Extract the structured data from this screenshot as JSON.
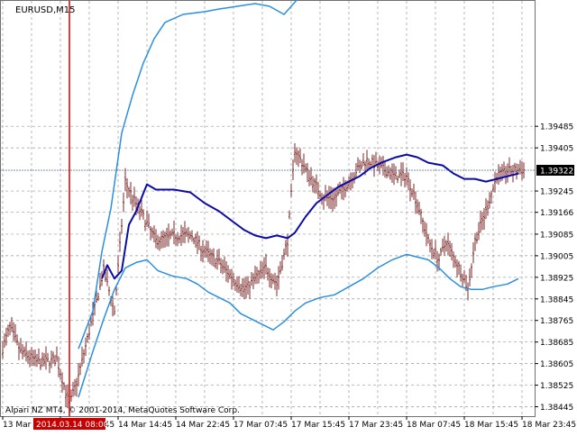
{
  "chart_data": {
    "type": "line",
    "title": "EURUSD,M15",
    "copyright": "Alpari NZ MT4, © 2001-2014, MetaQuotes Software Corp.",
    "current_price": 1.39322,
    "vline_label": "2014.03.14 08:00",
    "ylim": [
      1.3841,
      1.3995
    ],
    "y_ticks": [
      1.38445,
      1.38525,
      1.38605,
      1.38685,
      1.38765,
      1.38845,
      1.38925,
      1.39005,
      1.39085,
      1.39166,
      1.39245,
      1.39322,
      1.39405,
      1.39485
    ],
    "y_tick_labels": [
      "1.38445",
      "1.38525",
      "1.38605",
      "1.38685",
      "1.38765",
      "1.38845",
      "1.38925",
      "1.39005",
      "1.39085",
      "1.39166",
      "1.39245",
      "1.39405",
      "1.39485"
    ],
    "x_tick_labels": [
      "13 Mar 2014",
      "14 Mar 06:45",
      "14 Mar 14:45",
      "14 Mar 22:45",
      "17 Mar 07:45",
      "17 Mar 15:45",
      "17 Mar 23:45",
      "18 Mar 07:45",
      "18 Mar 15:45",
      "18 Mar 23:45"
    ],
    "x_ticks_at": [
      0,
      32,
      64,
      96,
      128,
      160,
      192,
      224,
      256,
      288
    ],
    "vline_at": 37,
    "bars_count": 290,
    "key_closes": [
      [
        0,
        1.3866
      ],
      [
        4,
        1.3874
      ],
      [
        10,
        1.3865
      ],
      [
        20,
        1.3861
      ],
      [
        30,
        1.3862
      ],
      [
        37,
        1.3845
      ],
      [
        42,
        1.3856
      ],
      [
        50,
        1.3878
      ],
      [
        56,
        1.3895
      ],
      [
        62,
        1.388
      ],
      [
        68,
        1.3928
      ],
      [
        72,
        1.3922
      ],
      [
        78,
        1.3915
      ],
      [
        85,
        1.3906
      ],
      [
        95,
        1.3908
      ],
      [
        105,
        1.3908
      ],
      [
        112,
        1.3902
      ],
      [
        120,
        1.3898
      ],
      [
        128,
        1.3892
      ],
      [
        134,
        1.3888
      ],
      [
        140,
        1.3892
      ],
      [
        146,
        1.3896
      ],
      [
        152,
        1.389
      ],
      [
        158,
        1.3906
      ],
      [
        162,
        1.394
      ],
      [
        166,
        1.3935
      ],
      [
        172,
        1.3928
      ],
      [
        178,
        1.3922
      ],
      [
        184,
        1.3922
      ],
      [
        190,
        1.3926
      ],
      [
        196,
        1.3932
      ],
      [
        202,
        1.3936
      ],
      [
        210,
        1.3933
      ],
      [
        218,
        1.393
      ],
      [
        224,
        1.393
      ],
      [
        230,
        1.392
      ],
      [
        236,
        1.3906
      ],
      [
        242,
        1.3899
      ],
      [
        246,
        1.3906
      ],
      [
        250,
        1.39
      ],
      [
        254,
        1.3895
      ],
      [
        258,
        1.3888
      ],
      [
        262,
        1.3906
      ],
      [
        268,
        1.3917
      ],
      [
        274,
        1.393
      ],
      [
        280,
        1.3932
      ],
      [
        286,
        1.39322
      ]
    ],
    "series": [
      {
        "key": "ma",
        "color": "#0b0ba8",
        "width": 2,
        "points": [
          [
            55,
            1.3892
          ],
          [
            58,
            1.3897
          ],
          [
            62,
            1.3892
          ],
          [
            66,
            1.3895
          ],
          [
            70,
            1.3912
          ],
          [
            74,
            1.3917
          ],
          [
            80,
            1.3927
          ],
          [
            85,
            1.3925
          ],
          [
            95,
            1.3925
          ],
          [
            104,
            1.3924
          ],
          [
            112,
            1.392
          ],
          [
            120,
            1.3917
          ],
          [
            128,
            1.3913
          ],
          [
            134,
            1.391
          ],
          [
            140,
            1.3908
          ],
          [
            146,
            1.3907
          ],
          [
            152,
            1.3908
          ],
          [
            158,
            1.3907
          ],
          [
            162,
            1.3909
          ],
          [
            168,
            1.3915
          ],
          [
            174,
            1.392
          ],
          [
            180,
            1.3923
          ],
          [
            186,
            1.3926
          ],
          [
            192,
            1.3928
          ],
          [
            198,
            1.393
          ],
          [
            204,
            1.3933
          ],
          [
            210,
            1.3935
          ],
          [
            218,
            1.3937
          ],
          [
            224,
            1.3938
          ],
          [
            230,
            1.3937
          ],
          [
            236,
            1.3935
          ],
          [
            244,
            1.3934
          ],
          [
            250,
            1.3931
          ],
          [
            256,
            1.3929
          ],
          [
            262,
            1.3929
          ],
          [
            268,
            1.3928
          ],
          [
            274,
            1.3929
          ],
          [
            280,
            1.393
          ],
          [
            286,
            1.3931
          ]
        ]
      },
      {
        "key": "upper",
        "color": "#2a8fe0",
        "width": 1.5,
        "points": [
          [
            42,
            1.3866
          ],
          [
            50,
            1.388
          ],
          [
            55,
            1.3902
          ],
          [
            60,
            1.3918
          ],
          [
            66,
            1.3946
          ],
          [
            72,
            1.396
          ],
          [
            78,
            1.3972
          ],
          [
            84,
            1.3981
          ],
          [
            90,
            1.3987
          ],
          [
            100,
            1.399
          ],
          [
            112,
            1.3991
          ],
          [
            120,
            1.3992
          ],
          [
            130,
            1.3993
          ],
          [
            140,
            1.3994
          ],
          [
            148,
            1.3993
          ],
          [
            156,
            1.399
          ],
          [
            164,
            1.3996
          ]
        ]
      },
      {
        "key": "lower",
        "color": "#2a8fe0",
        "width": 1.5,
        "points": [
          [
            42,
            1.3848
          ],
          [
            50,
            1.3865
          ],
          [
            56,
            1.3877
          ],
          [
            62,
            1.3888
          ],
          [
            68,
            1.3896
          ],
          [
            74,
            1.3898
          ],
          [
            80,
            1.3899
          ],
          [
            86,
            1.3895
          ],
          [
            94,
            1.3893
          ],
          [
            102,
            1.3892
          ],
          [
            108,
            1.389
          ],
          [
            114,
            1.3887
          ],
          [
            120,
            1.3885
          ],
          [
            126,
            1.3883
          ],
          [
            132,
            1.3879
          ],
          [
            138,
            1.3877
          ],
          [
            144,
            1.3875
          ],
          [
            150,
            1.3873
          ],
          [
            156,
            1.3876
          ],
          [
            162,
            1.388
          ],
          [
            168,
            1.3883
          ],
          [
            176,
            1.3885
          ],
          [
            184,
            1.3886
          ],
          [
            192,
            1.3889
          ],
          [
            200,
            1.3892
          ],
          [
            208,
            1.3896
          ],
          [
            216,
            1.3899
          ],
          [
            224,
            1.3901
          ],
          [
            230,
            1.39
          ],
          [
            236,
            1.3899
          ],
          [
            242,
            1.3896
          ],
          [
            248,
            1.3892
          ],
          [
            254,
            1.3889
          ],
          [
            260,
            1.3888
          ],
          [
            266,
            1.3888
          ],
          [
            272,
            1.3889
          ],
          [
            280,
            1.389
          ],
          [
            286,
            1.3892
          ]
        ]
      }
    ],
    "colors": {
      "bars": "#7a2a2a",
      "grid": "#9a9a9a",
      "vline": "#d00000",
      "price_line": "#4d6e8e",
      "badge_bg": "#000000",
      "date_bg": "#c80000"
    }
  }
}
